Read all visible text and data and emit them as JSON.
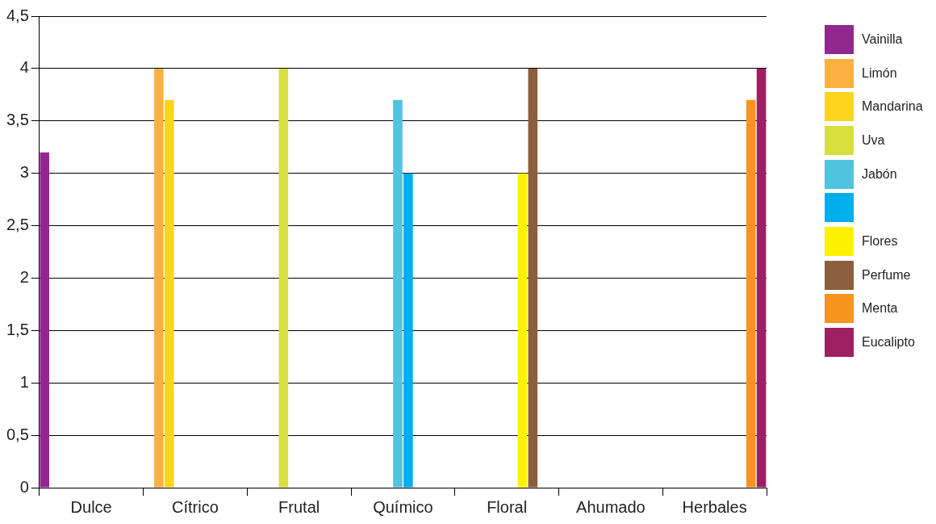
{
  "chart_data": {
    "type": "bar",
    "categories": [
      "Dulce",
      "Cítrico",
      "Frutal",
      "Químico",
      "Floral",
      "Ahumado",
      "Herbales"
    ],
    "series": [
      {
        "name": "Vainilla",
        "color": "#92278f",
        "values": [
          3.2,
          null,
          null,
          null,
          null,
          null,
          null
        ]
      },
      {
        "name": "Limón",
        "color": "#fbb040",
        "values": [
          null,
          4,
          null,
          null,
          null,
          null,
          null
        ]
      },
      {
        "name": "Mandarina",
        "color": "#fdd51e",
        "values": [
          null,
          3.7,
          null,
          null,
          null,
          null,
          null
        ]
      },
      {
        "name": "Uva",
        "color": "#d7df3f",
        "values": [
          null,
          null,
          4,
          null,
          null,
          null,
          null
        ]
      },
      {
        "name": "Jabón",
        "color": "#4fc4e0",
        "values": [
          null,
          null,
          null,
          3.7,
          null,
          null,
          null
        ]
      },
      {
        "color": "#00aeef",
        "values": [
          null,
          null,
          null,
          3,
          null,
          null,
          null
        ]
      },
      {
        "name": "Flores",
        "color": "#fff200",
        "values": [
          null,
          null,
          null,
          null,
          3,
          null,
          null
        ]
      },
      {
        "name": "Perfume",
        "color": "#8b5e3c",
        "values": [
          null,
          null,
          null,
          null,
          4,
          null,
          null
        ]
      },
      {
        "name": "Menta",
        "color": "#f7941d",
        "values": [
          null,
          null,
          null,
          null,
          null,
          null,
          3.7
        ]
      },
      {
        "name": "Eucalipto",
        "color": "#9e1f63",
        "values": [
          null,
          null,
          null,
          null,
          null,
          null,
          4
        ]
      }
    ],
    "ylim": [
      0,
      4.5
    ],
    "yticks": [
      0,
      {
        "value": 0.5,
        "label": "0,5"
      },
      1,
      {
        "value": 1.5,
        "label": "1,5"
      },
      2,
      {
        "value": 2.5,
        "label": "2,5"
      },
      3,
      {
        "value": 3.5,
        "label": "3,5"
      },
      4,
      {
        "value": 4.5,
        "label": "4,5"
      }
    ],
    "grid": "y",
    "legend": "right"
  }
}
